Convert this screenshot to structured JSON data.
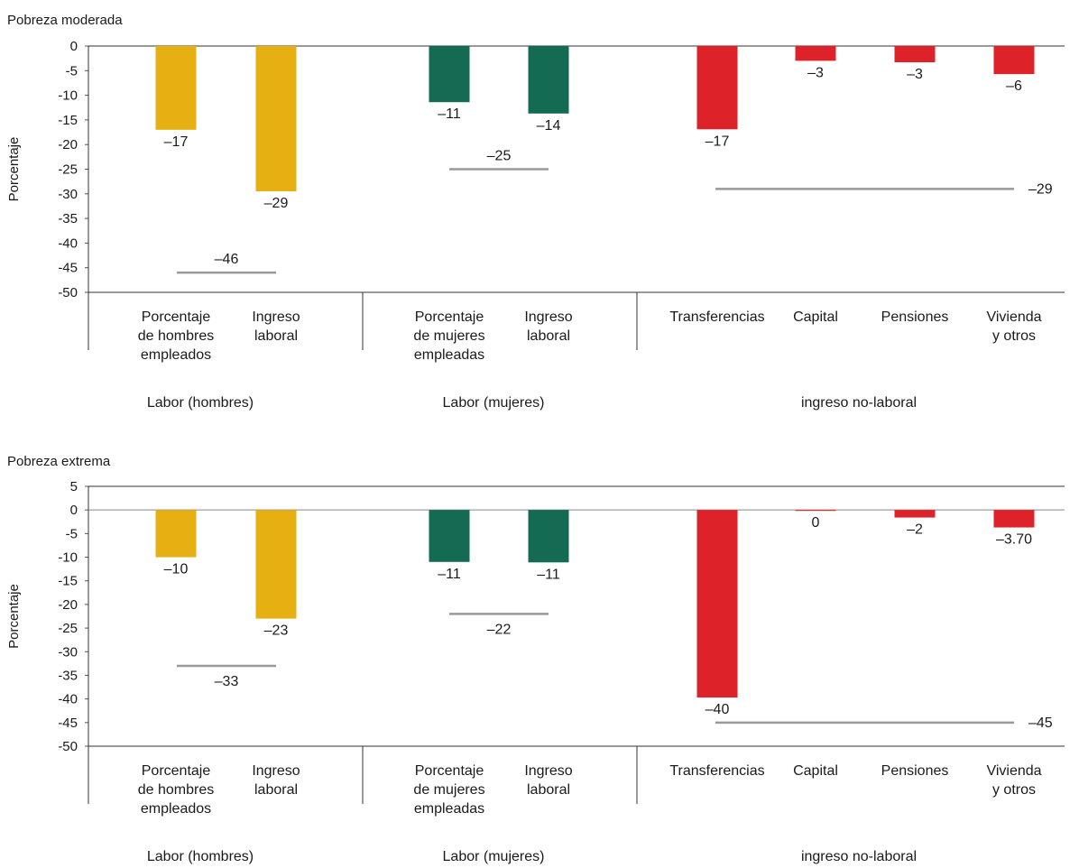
{
  "chart_data": [
    {
      "type": "bar",
      "title": "Pobreza moderada",
      "ylabel": "Porcentaje",
      "ylim": [
        -50,
        0
      ],
      "yticks": [
        0,
        -5,
        -10,
        -15,
        -20,
        -25,
        -30,
        -35,
        -40,
        -45,
        -50
      ],
      "groups": [
        {
          "label": "Labor (hombres)",
          "total": -46,
          "total_label": "–46",
          "bars": [
            {
              "label": [
                "Porcentaje",
                "de hombres",
                "empleados"
              ],
              "value": -17,
              "value_label": "–17",
              "color": "#E6AF12"
            },
            {
              "label": [
                "Ingreso",
                "laboral"
              ],
              "value": -29.5,
              "value_label": "–29",
              "color": "#E6AF12"
            }
          ]
        },
        {
          "label": "Labor (mujeres)",
          "total": -25,
          "total_label": "–25",
          "bars": [
            {
              "label": [
                "Porcentaje",
                "de mujeres",
                "empleadas"
              ],
              "value": -11.4,
              "value_label": "–11",
              "color": "#146A52"
            },
            {
              "label": [
                "Ingreso",
                "laboral"
              ],
              "value": -13.7,
              "value_label": "–14",
              "color": "#146A52"
            }
          ]
        },
        {
          "label": "ingreso no-laboral",
          "total": -29,
          "total_label": "–29",
          "bars": [
            {
              "label": [
                "Transferencias"
              ],
              "value": -16.9,
              "value_label": "–17",
              "color": "#DD2229"
            },
            {
              "label": [
                "Capital"
              ],
              "value": -3,
              "value_label": "–3",
              "color": "#DD2229"
            },
            {
              "label": [
                "Pensiones"
              ],
              "value": -3.3,
              "value_label": "–3",
              "color": "#DD2229"
            },
            {
              "label": [
                "Vivienda",
                "y otros"
              ],
              "value": -5.7,
              "value_label": "–6",
              "color": "#DD2229"
            }
          ]
        }
      ]
    },
    {
      "type": "bar",
      "title": "Pobreza extrema",
      "ylabel": "Porcentaje",
      "ylim": [
        -50,
        5
      ],
      "yticks": [
        5,
        0,
        -5,
        -10,
        -15,
        -20,
        -25,
        -30,
        -35,
        -40,
        -45,
        -50
      ],
      "groups": [
        {
          "label": "Labor (hombres)",
          "total": -33,
          "total_label": "–33",
          "bars": [
            {
              "label": [
                "Porcentaje",
                "de hombres",
                "empleados"
              ],
              "value": -10,
              "value_label": "–10",
              "color": "#E6AF12"
            },
            {
              "label": [
                "Ingreso",
                "laboral"
              ],
              "value": -23,
              "value_label": "–23",
              "color": "#E6AF12"
            }
          ]
        },
        {
          "label": "Labor (mujeres)",
          "total": -22,
          "total_label": "–22",
          "bars": [
            {
              "label": [
                "Porcentaje",
                "de mujeres",
                "empleadas"
              ],
              "value": -11,
              "value_label": "–11",
              "color": "#146A52"
            },
            {
              "label": [
                "Ingreso",
                "laboral"
              ],
              "value": -11.1,
              "value_label": "–11",
              "color": "#146A52"
            }
          ]
        },
        {
          "label": "ingreso no-laboral",
          "total": -45,
          "total_label": "–45",
          "bars": [
            {
              "label": [
                "Transferencias"
              ],
              "value": -39.7,
              "value_label": "–40",
              "color": "#DD2229"
            },
            {
              "label": [
                "Capital"
              ],
              "value": -0.2,
              "value_label": "0",
              "color": "#DD2229"
            },
            {
              "label": [
                "Pensiones"
              ],
              "value": -1.6,
              "value_label": "–2",
              "color": "#DD2229"
            },
            {
              "label": [
                "Vivienda",
                "y otros"
              ],
              "value": -3.7,
              "value_label": "–3.70",
              "color": "#DD2229"
            }
          ]
        }
      ]
    }
  ]
}
